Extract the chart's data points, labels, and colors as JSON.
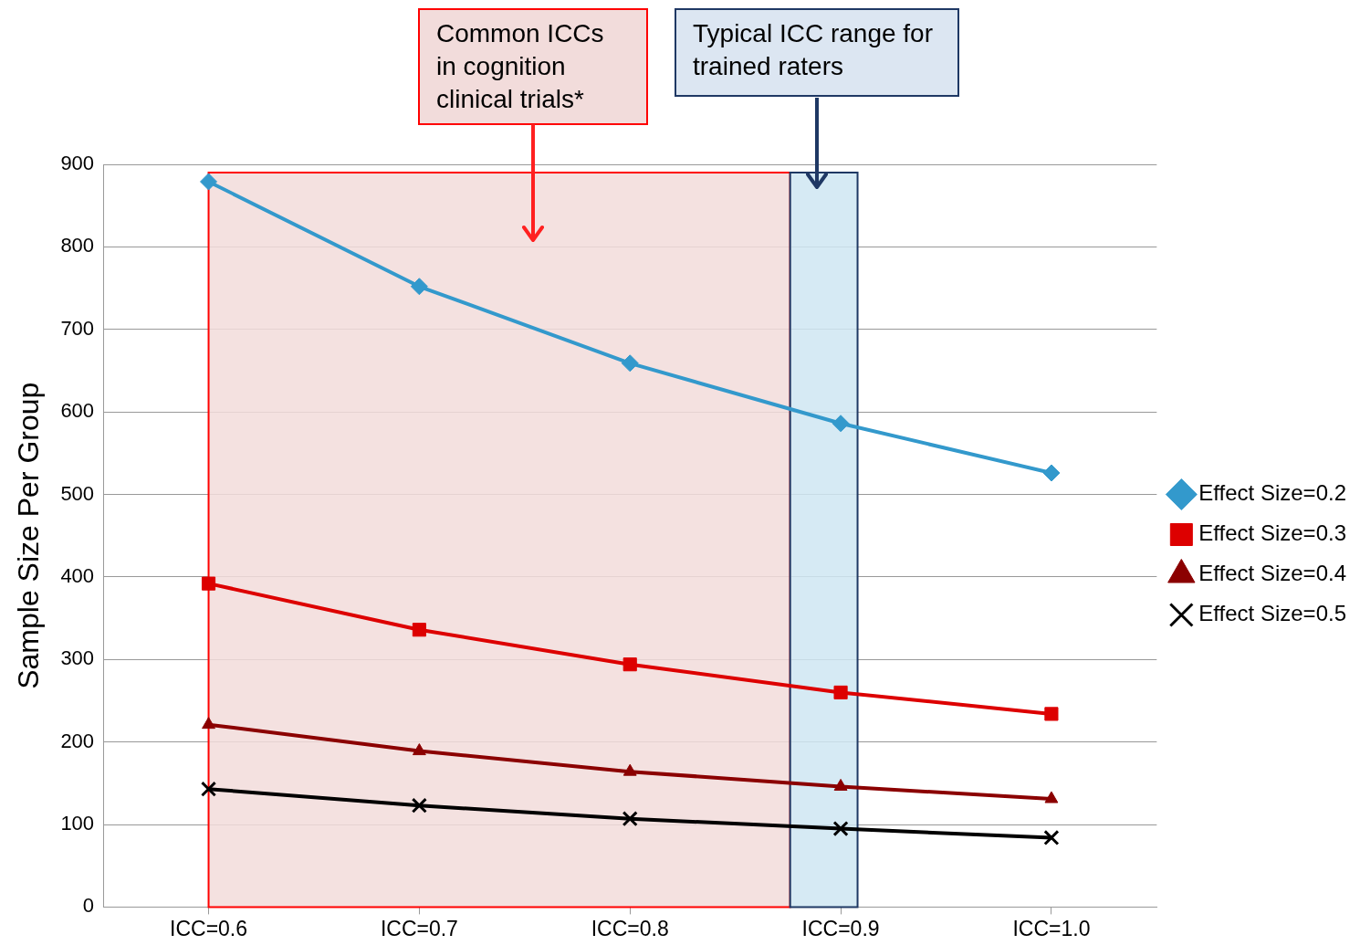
{
  "chart_data": {
    "type": "line",
    "ylabel": "Sample Size Per Group",
    "x": [
      0.6,
      0.7,
      0.8,
      0.9,
      1.0
    ],
    "xlim": [
      0.55,
      1.05
    ],
    "xticks": [
      {
        "value": 0.6,
        "label": "ICC=0.6"
      },
      {
        "value": 0.7,
        "label": "ICC=0.7"
      },
      {
        "value": 0.8,
        "label": "ICC=0.8"
      },
      {
        "value": 0.9,
        "label": "ICC=0.9"
      },
      {
        "value": 1.0,
        "label": "ICC=1.0"
      }
    ],
    "ylim": [
      0,
      900
    ],
    "yticks": [
      0,
      100,
      200,
      300,
      400,
      500,
      600,
      700,
      800,
      900
    ],
    "grid": "y",
    "legend": "right",
    "series": [
      {
        "name": "Effect Size=0.2",
        "color": "#3399cc",
        "marker": "diamond",
        "values": [
          879,
          752,
          659,
          586,
          526
        ]
      },
      {
        "name": "Effect Size=0.3",
        "color": "#dd0000",
        "marker": "square",
        "values": [
          392,
          336,
          294,
          260,
          234
        ]
      },
      {
        "name": "Effect Size=0.4",
        "color": "#8b0000",
        "marker": "triangle",
        "values": [
          221,
          189,
          164,
          146,
          131
        ]
      },
      {
        "name": "Effect Size=0.5",
        "color": "#000000",
        "marker": "cross",
        "values": [
          143,
          123,
          107,
          95,
          84
        ]
      }
    ],
    "bands": [
      {
        "axis": "x",
        "from": 0.6,
        "to": 0.876,
        "color": "#f2dcdb",
        "label": "Common ICCs in cognition clinical trials*"
      },
      {
        "axis": "x",
        "from": 0.876,
        "to": 0.908,
        "color": "#cfe6f2",
        "label": "Typical ICC range for trained raters"
      }
    ]
  }
}
